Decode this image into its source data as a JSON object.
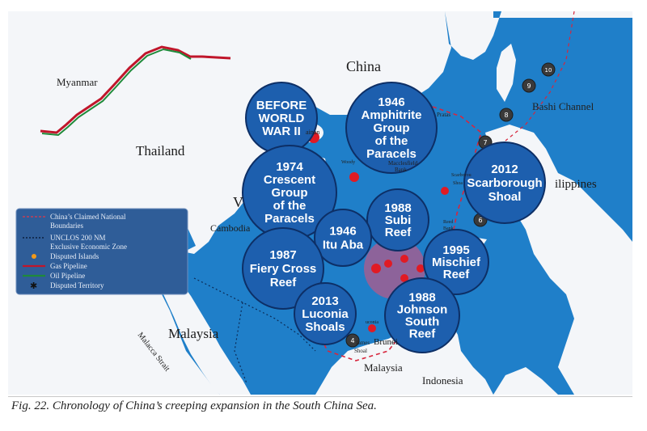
{
  "caption": "Fig. 22. Chronology of China’s creeping expansion in the South China Sea.",
  "countries": {
    "china": "China",
    "myanmar": "Myanmar",
    "thailand": "Thailand",
    "cambodia": "Cambodia",
    "vietnam_partial": "V",
    "malaysia_west": "Malaysia",
    "malaysia_east": "Malaysia",
    "brunei": "Brunei",
    "indonesia": "Indonesia",
    "philippines_partial": "ilippines"
  },
  "places": {
    "bashi_channel": "Bashi Channel",
    "hainan": "ainan",
    "pratas": "Pratas",
    "macclesfield_1": "Macclesfield",
    "macclesfield_2": "Bank",
    "woody": "Woody",
    "scarborough_1": "Scarborou",
    "scarborough_2": "Shoa",
    "reed_1": "Reed",
    "reed_2": "Bank",
    "luconia": "uconia",
    "james_1": "James",
    "james_2": "Shoal",
    "malacca": "Malacca Strait"
  },
  "legend": {
    "items": [
      {
        "label": "China’s Claimed National",
        "label2": "Boundaries",
        "symbol": "dashed-red"
      },
      {
        "label": "UNCLOS 200 NM",
        "label2": "Exclusive Economic Zone",
        "symbol": "dashed-black"
      },
      {
        "label": "Disputed Islands",
        "symbol": "orange-dot"
      },
      {
        "label": "Gas Pipeline",
        "symbol": "red-line"
      },
      {
        "label": "Oil Pipeline",
        "symbol": "green-line"
      },
      {
        "label": "Disputed Territory",
        "symbol": "star"
      }
    ]
  },
  "events": [
    {
      "id": "before-ww2",
      "lines": [
        "BEFORE",
        "WORLD",
        "WAR II"
      ]
    },
    {
      "id": "1946-amphitrite",
      "lines": [
        "1946",
        "Amphitrite",
        "Group",
        "of the",
        "Paracels"
      ]
    },
    {
      "id": "1974-crescent",
      "lines": [
        "1974",
        "Crescent",
        "Group",
        "of the",
        "Paracels"
      ]
    },
    {
      "id": "2012-scarborough",
      "lines": [
        "2012",
        "Scarborough",
        "Shoal"
      ]
    },
    {
      "id": "1988-subi",
      "lines": [
        "1988",
        "Subi",
        "Reef"
      ]
    },
    {
      "id": "1946-itu-aba",
      "lines": [
        "1946",
        "Itu Aba"
      ]
    },
    {
      "id": "1987-fiery-cross",
      "lines": [
        "1987",
        "Fiery Cross",
        "Reef"
      ]
    },
    {
      "id": "1995-mischief",
      "lines": [
        "1995",
        "Mischief",
        "Reef"
      ]
    },
    {
      "id": "2013-luconia",
      "lines": [
        "2013",
        "Luconia",
        "Shoals"
      ]
    },
    {
      "id": "1988-johnson",
      "lines": [
        "1988",
        "Johnson",
        "South",
        "Reef"
      ]
    }
  ],
  "markers": [
    "10",
    "9",
    "8",
    "7",
    "6",
    "4"
  ],
  "colors": {
    "sea": "#1f7fc9",
    "land": "#f4f6f9",
    "bubble": "#1d5fae",
    "bubble_stroke": "#0d2f66",
    "claim_line": "#d7263d",
    "oil": "#1f8a3a",
    "gas": "#c0162b",
    "marker": "#3a3a3a"
  }
}
